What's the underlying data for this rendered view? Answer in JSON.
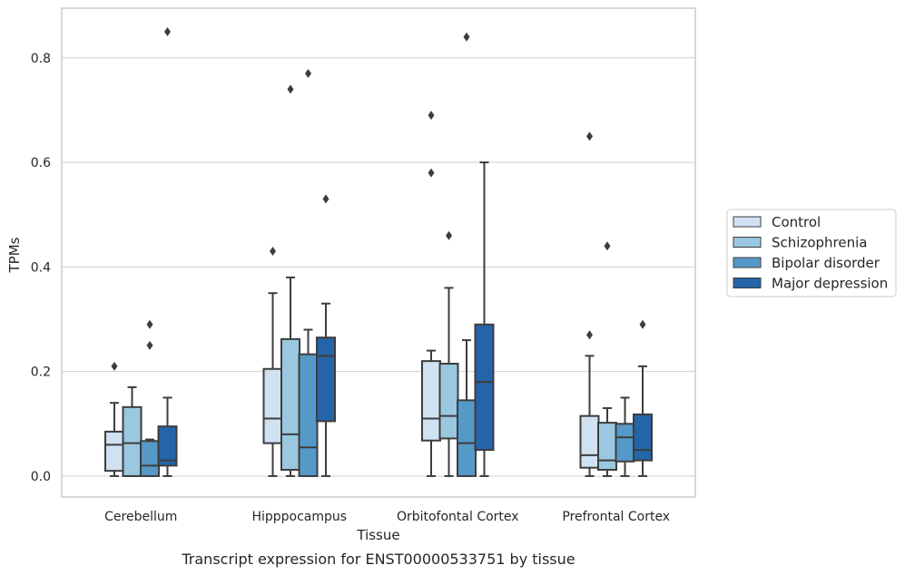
{
  "chart_data": {
    "type": "box",
    "title": "",
    "caption": "Transcript expression for ENST00000533751 by tissue",
    "xlabel": "Tissue",
    "ylabel": "TPMs",
    "ylim": [
      -0.04,
      0.895
    ],
    "yticks": [
      0.0,
      0.2,
      0.4,
      0.6,
      0.8
    ],
    "ytick_labels": [
      "0.0",
      "0.2",
      "0.4",
      "0.6",
      "0.8"
    ],
    "grid": true,
    "legend_position": "right",
    "categories": [
      "Cerebellum",
      "Hipppocampus",
      "Orbitofontal Cortex",
      "Prefrontal Cortex"
    ],
    "series": [
      {
        "name": "Control",
        "color": "#d0e1f2",
        "boxes": [
          {
            "whislo": 0.0,
            "q1": 0.01,
            "med": 0.06,
            "q3": 0.085,
            "whishi": 0.14,
            "fliers": [
              0.21
            ]
          },
          {
            "whislo": 0.0,
            "q1": 0.063,
            "med": 0.11,
            "q3": 0.205,
            "whishi": 0.35,
            "fliers": [
              0.43
            ]
          },
          {
            "whislo": 0.0,
            "q1": 0.068,
            "med": 0.11,
            "q3": 0.22,
            "whishi": 0.24,
            "fliers": [
              0.58,
              0.69
            ]
          },
          {
            "whislo": 0.0,
            "q1": 0.016,
            "med": 0.04,
            "q3": 0.115,
            "whishi": 0.23,
            "fliers": [
              0.27,
              0.65
            ]
          }
        ]
      },
      {
        "name": "Schizophrenia",
        "color": "#9ac8e0",
        "boxes": [
          {
            "whislo": 0.0,
            "q1": 0.0,
            "med": 0.063,
            "q3": 0.132,
            "whishi": 0.17,
            "fliers": []
          },
          {
            "whislo": 0.0,
            "q1": 0.012,
            "med": 0.08,
            "q3": 0.262,
            "whishi": 0.38,
            "fliers": [
              0.74
            ]
          },
          {
            "whislo": 0.0,
            "q1": 0.072,
            "med": 0.115,
            "q3": 0.215,
            "whishi": 0.36,
            "fliers": [
              0.46
            ]
          },
          {
            "whislo": 0.0,
            "q1": 0.012,
            "med": 0.03,
            "q3": 0.102,
            "whishi": 0.13,
            "fliers": [
              0.44
            ]
          }
        ]
      },
      {
        "name": "Bipolar disorder",
        "color": "#5599c9",
        "boxes": [
          {
            "whislo": 0.0,
            "q1": 0.0,
            "med": 0.02,
            "q3": 0.067,
            "whishi": 0.07,
            "fliers": [
              0.25,
              0.29
            ]
          },
          {
            "whislo": 0.0,
            "q1": 0.0,
            "med": 0.055,
            "q3": 0.233,
            "whishi": 0.28,
            "fliers": [
              0.77
            ]
          },
          {
            "whislo": 0.0,
            "q1": 0.0,
            "med": 0.063,
            "q3": 0.145,
            "whishi": 0.26,
            "fliers": [
              0.84
            ]
          },
          {
            "whislo": 0.0,
            "q1": 0.028,
            "med": 0.074,
            "q3": 0.1,
            "whishi": 0.15,
            "fliers": []
          }
        ]
      },
      {
        "name": "Major depression",
        "color": "#2464a8",
        "boxes": [
          {
            "whislo": 0.0,
            "q1": 0.02,
            "med": 0.03,
            "q3": 0.095,
            "whishi": 0.15,
            "fliers": [
              0.85
            ]
          },
          {
            "whislo": 0.0,
            "q1": 0.105,
            "med": 0.23,
            "q3": 0.265,
            "whishi": 0.33,
            "fliers": [
              0.53
            ]
          },
          {
            "whislo": 0.0,
            "q1": 0.05,
            "med": 0.18,
            "q3": 0.29,
            "whishi": 0.6,
            "fliers": []
          },
          {
            "whislo": 0.0,
            "q1": 0.03,
            "med": 0.05,
            "q3": 0.118,
            "whishi": 0.21,
            "fliers": [
              0.29
            ]
          }
        ]
      }
    ]
  }
}
